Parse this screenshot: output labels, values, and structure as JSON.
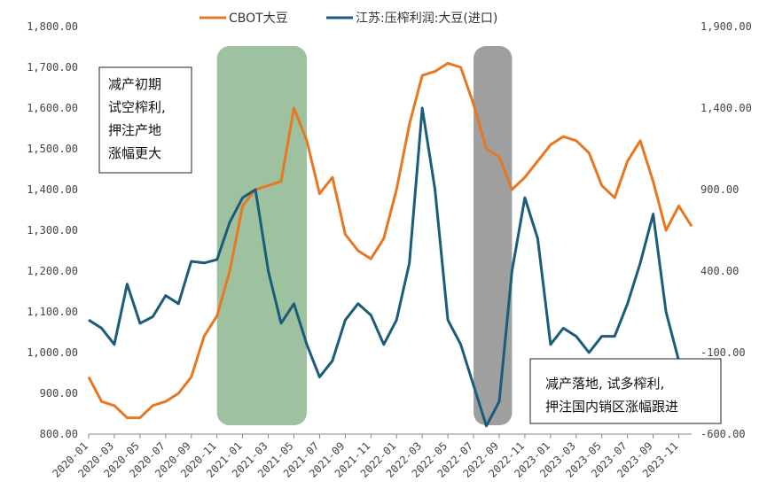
{
  "chart_data": {
    "type": "line",
    "title": "",
    "legend": {
      "placement": "top",
      "items": [
        {
          "key": "cbot",
          "label": "CBOT大豆",
          "color": "#E87722"
        },
        {
          "key": "margin",
          "label": "江苏:压榨利润:大豆(进口)",
          "color": "#1B5C7B"
        }
      ]
    },
    "x_ticks": [
      "2020-01",
      "2020-03",
      "2020-05",
      "2020-07",
      "2020-09",
      "2020-11",
      "2021-01",
      "2021-03",
      "2021-05",
      "2021-07",
      "2021-09",
      "2021-11",
      "2022-01",
      "2022-03",
      "2022-05",
      "2022-07",
      "2022-09",
      "2022-11",
      "2023-01",
      "2023-03",
      "2023-05",
      "2023-07",
      "2023-09",
      "2023-11"
    ],
    "x_range": [
      "2020-01",
      "2023-12"
    ],
    "y_left": {
      "ylim": [
        800,
        1800
      ],
      "ticks": [
        "800.00",
        "900.00",
        "1,000.00",
        "1,100.00",
        "1,200.00",
        "1,300.00",
        "1,400.00",
        "1,500.00",
        "1,600.00",
        "1,700.00",
        "1,800.00"
      ]
    },
    "y_right": {
      "ylim": [
        -600,
        1900
      ],
      "ticks": [
        "-600.00",
        "-100.00",
        "400.00",
        "900.00",
        "1,400.00",
        "1,900.00"
      ]
    },
    "grid": false,
    "series": [
      {
        "name": "CBOT大豆",
        "axis": "left",
        "color": "#E87722",
        "x": [
          "2020-01",
          "2020-02",
          "2020-03",
          "2020-04",
          "2020-05",
          "2020-06",
          "2020-07",
          "2020-08",
          "2020-09",
          "2020-10",
          "2020-11",
          "2020-12",
          "2021-01",
          "2021-02",
          "2021-03",
          "2021-04",
          "2021-05",
          "2021-06",
          "2021-07",
          "2021-08",
          "2021-09",
          "2021-10",
          "2021-11",
          "2021-12",
          "2022-01",
          "2022-02",
          "2022-03",
          "2022-04",
          "2022-05",
          "2022-06",
          "2022-07",
          "2022-08",
          "2022-09",
          "2022-10",
          "2022-11",
          "2022-12",
          "2023-01",
          "2023-02",
          "2023-03",
          "2023-04",
          "2023-05",
          "2023-06",
          "2023-07",
          "2023-08",
          "2023-09",
          "2023-10",
          "2023-11",
          "2023-12"
        ],
        "values": [
          940,
          880,
          870,
          840,
          840,
          870,
          880,
          900,
          940,
          1040,
          1090,
          1200,
          1360,
          1400,
          1410,
          1420,
          1600,
          1520,
          1390,
          1430,
          1290,
          1250,
          1230,
          1280,
          1400,
          1560,
          1680,
          1690,
          1710,
          1700,
          1610,
          1500,
          1480,
          1400,
          1430,
          1470,
          1510,
          1530,
          1520,
          1490,
          1410,
          1380,
          1470,
          1520,
          1420,
          1300,
          1360,
          1310
        ]
      },
      {
        "name": "江苏:压榨利润:大豆(进口)",
        "axis": "right",
        "color": "#1B5C7B",
        "x": [
          "2020-01",
          "2020-02",
          "2020-03",
          "2020-04",
          "2020-05",
          "2020-06",
          "2020-07",
          "2020-08",
          "2020-09",
          "2020-10",
          "2020-11",
          "2020-12",
          "2021-01",
          "2021-02",
          "2021-03",
          "2021-04",
          "2021-05",
          "2021-06",
          "2021-07",
          "2021-08",
          "2021-09",
          "2021-10",
          "2021-11",
          "2021-12",
          "2022-01",
          "2022-02",
          "2022-03",
          "2022-04",
          "2022-05",
          "2022-06",
          "2022-07",
          "2022-08",
          "2022-09",
          "2022-10",
          "2022-11",
          "2022-12",
          "2023-01",
          "2023-02",
          "2023-03",
          "2023-04",
          "2023-05",
          "2023-06",
          "2023-07",
          "2023-08",
          "2023-09",
          "2023-10",
          "2023-11",
          "2023-12"
        ],
        "values": [
          100,
          50,
          -50,
          320,
          80,
          120,
          250,
          200,
          460,
          450,
          470,
          700,
          850,
          900,
          400,
          80,
          200,
          -50,
          -250,
          -150,
          100,
          200,
          130,
          -50,
          100,
          450,
          1400,
          900,
          100,
          -50,
          -300,
          -550,
          -400,
          400,
          850,
          600,
          -50,
          50,
          0,
          -100,
          0,
          0,
          200,
          450,
          750,
          150,
          -150,
          -150
        ]
      }
    ],
    "highlight_regions": [
      {
        "from": "2020-11",
        "to": "2021-06",
        "color": "#8DB68F"
      },
      {
        "from": "2022-07",
        "to": "2022-10",
        "color": "#8E8E8E"
      }
    ],
    "annotations": [
      {
        "lines": [
          "减产初期",
          "试空榨利,",
          "押注产地",
          "涨幅更大"
        ]
      },
      {
        "lines": [
          "减产落地, 试多榨利,",
          "押注国内销区涨幅跟进"
        ]
      }
    ]
  }
}
